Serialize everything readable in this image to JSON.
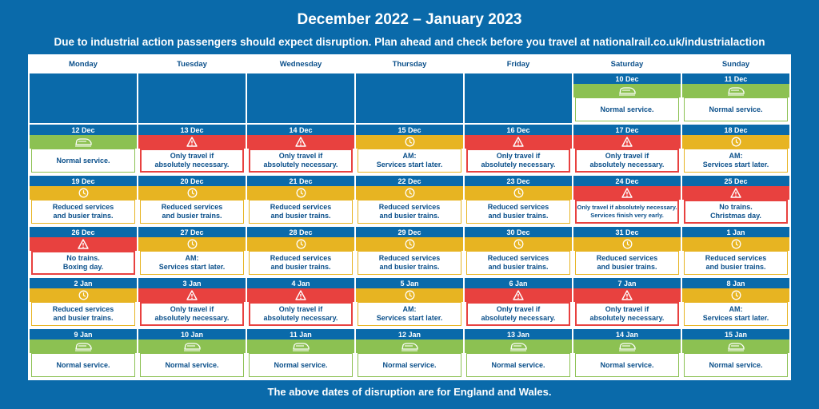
{
  "title": "December 2022  – January 2023",
  "subtitle_text": "Due to industrial action passengers should expect disruption. Plan ahead and check before you travel at ",
  "subtitle_url": "nationalrail.co.uk/industrialaction",
  "footer": "The above dates of disruption are for England and Wales.",
  "days": [
    "Monday",
    "Tuesday",
    "Wednesday",
    "Thursday",
    "Friday",
    "Saturday",
    "Sunday"
  ],
  "status_colors": {
    "normal": "#8cc152",
    "red": "#e8413f",
    "amber": "#e7b422",
    "blue": "#0a6aaa"
  },
  "status_icons": {
    "normal": "train-icon",
    "red": "warning-icon",
    "amber": "clock-icon"
  },
  "cells": [
    {
      "date": "",
      "status": "empty",
      "lines": []
    },
    {
      "date": "",
      "status": "empty",
      "lines": []
    },
    {
      "date": "",
      "status": "empty",
      "lines": []
    },
    {
      "date": "",
      "status": "empty",
      "lines": []
    },
    {
      "date": "",
      "status": "empty",
      "lines": []
    },
    {
      "date": "10 Dec",
      "status": "normal",
      "lines": [
        "Normal service."
      ]
    },
    {
      "date": "11 Dec",
      "status": "normal",
      "lines": [
        "Normal service."
      ]
    },
    {
      "date": "12 Dec",
      "status": "normal",
      "lines": [
        "Normal service."
      ]
    },
    {
      "date": "13 Dec",
      "status": "red",
      "lines": [
        "Only travel if",
        "absolutely necessary."
      ]
    },
    {
      "date": "14 Dec",
      "status": "red",
      "lines": [
        "Only travel if",
        "absolutely necessary."
      ]
    },
    {
      "date": "15 Dec",
      "status": "amber",
      "lines": [
        "AM:",
        "Services start later."
      ]
    },
    {
      "date": "16 Dec",
      "status": "red",
      "lines": [
        "Only travel if",
        "absolutely necessary."
      ]
    },
    {
      "date": "17 Dec",
      "status": "red",
      "lines": [
        "Only travel if",
        "absolutely necessary."
      ]
    },
    {
      "date": "18 Dec",
      "status": "amber",
      "lines": [
        "AM:",
        "Services start later."
      ]
    },
    {
      "date": "19 Dec",
      "status": "amber",
      "lines": [
        "Reduced services",
        "and busier trains."
      ]
    },
    {
      "date": "20 Dec",
      "status": "amber",
      "lines": [
        "Reduced services",
        "and busier trains."
      ]
    },
    {
      "date": "21 Dec",
      "status": "amber",
      "lines": [
        "Reduced services",
        "and busier trains."
      ]
    },
    {
      "date": "22 Dec",
      "status": "amber",
      "lines": [
        "Reduced services",
        "and busier trains."
      ]
    },
    {
      "date": "23 Dec",
      "status": "amber",
      "lines": [
        "Reduced services",
        "and busier trains."
      ]
    },
    {
      "date": "24 Dec",
      "status": "red",
      "small": true,
      "lines": [
        "Only travel if absolutely necessary.",
        "Services finish very early."
      ]
    },
    {
      "date": "25 Dec",
      "status": "red",
      "lines": [
        "No trains.",
        "Christmas day."
      ]
    },
    {
      "date": "26 Dec",
      "status": "red",
      "lines": [
        "No trains.",
        "Boxing day."
      ]
    },
    {
      "date": "27 Dec",
      "status": "amber",
      "lines": [
        "AM:",
        "Services start later."
      ]
    },
    {
      "date": "28 Dec",
      "status": "amber",
      "lines": [
        "Reduced services",
        "and busier trains."
      ]
    },
    {
      "date": "29 Dec",
      "status": "amber",
      "lines": [
        "Reduced services",
        "and busier trains."
      ]
    },
    {
      "date": "30 Dec",
      "status": "amber",
      "lines": [
        "Reduced services",
        "and busier trains."
      ]
    },
    {
      "date": "31 Dec",
      "status": "amber",
      "lines": [
        "Reduced services",
        "and busier trains."
      ]
    },
    {
      "date": "1 Jan",
      "status": "amber",
      "lines": [
        "Reduced services",
        "and busier trains."
      ]
    },
    {
      "date": "2 Jan",
      "status": "amber",
      "lines": [
        "Reduced services",
        "and busier trains."
      ]
    },
    {
      "date": "3 Jan",
      "status": "red",
      "lines": [
        "Only travel if",
        "absolutely necessary."
      ]
    },
    {
      "date": "4 Jan",
      "status": "red",
      "lines": [
        "Only travel if",
        "absolutely necessary."
      ]
    },
    {
      "date": "5 Jan",
      "status": "amber",
      "lines": [
        "AM:",
        "Services start later."
      ]
    },
    {
      "date": "6 Jan",
      "status": "red",
      "lines": [
        "Only travel if",
        "absolutely necessary."
      ]
    },
    {
      "date": "7 Jan",
      "status": "red",
      "lines": [
        "Only travel if",
        "absolutely necessary."
      ]
    },
    {
      "date": "8 Jan",
      "status": "amber",
      "lines": [
        "AM:",
        "Services start later."
      ]
    },
    {
      "date": "9 Jan",
      "status": "normal",
      "lines": [
        "Normal service."
      ]
    },
    {
      "date": "10 Jan",
      "status": "normal",
      "lines": [
        "Normal service."
      ]
    },
    {
      "date": "11 Jan",
      "status": "normal",
      "lines": [
        "Normal service."
      ]
    },
    {
      "date": "12 Jan",
      "status": "normal",
      "lines": [
        "Normal service."
      ]
    },
    {
      "date": "13 Jan",
      "status": "normal",
      "lines": [
        "Normal service."
      ]
    },
    {
      "date": "14 Jan",
      "status": "normal",
      "lines": [
        "Normal service."
      ]
    },
    {
      "date": "15 Jan",
      "status": "normal",
      "lines": [
        "Normal service."
      ]
    }
  ]
}
